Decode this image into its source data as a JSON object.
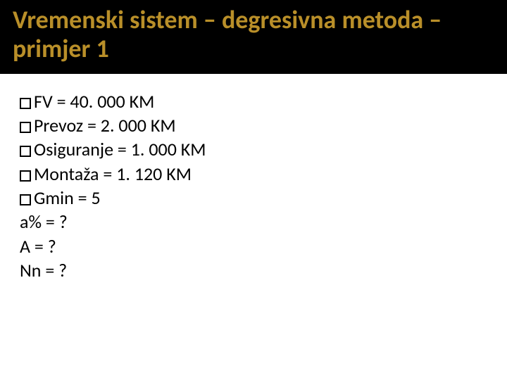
{
  "title": "Vremenski sistem – degresivna metoda – primjer 1",
  "title_color": "#b98f29",
  "title_bg": "#000000",
  "title_fontsize": 36,
  "body_fontsize": 26,
  "body_color": "#000000",
  "lines": [
    {
      "bullet": true,
      "text": "FV = 40. 000 KM"
    },
    {
      "bullet": true,
      "text": "Prevoz = 2. 000 KM"
    },
    {
      "bullet": true,
      "text": "Osiguranje  = 1. 000 KM"
    },
    {
      "bullet": true,
      "text": "Montaža = 1. 120 KM"
    },
    {
      "bullet": true,
      "text": "Gmin = 5"
    },
    {
      "bullet": false,
      "text": "a% = ?"
    },
    {
      "bullet": false,
      "text": "A = ?"
    },
    {
      "bullet": false,
      "text": "Nn = ?"
    }
  ]
}
